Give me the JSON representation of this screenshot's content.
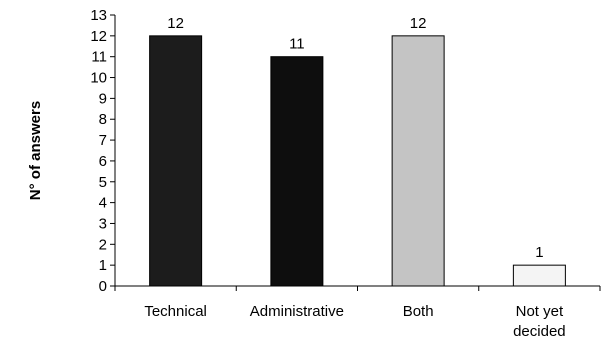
{
  "chart_data": {
    "type": "bar",
    "ylabel": "N° of answers",
    "ylim": [
      0,
      13
    ],
    "yticks": [
      0,
      1,
      2,
      3,
      4,
      5,
      6,
      7,
      8,
      9,
      10,
      11,
      12,
      13
    ],
    "grid": false,
    "categories": [
      [
        "Technical"
      ],
      [
        "Administrative"
      ],
      [
        "Both"
      ],
      [
        "Not yet",
        "decided"
      ]
    ],
    "values": [
      12,
      11,
      12,
      1
    ],
    "data_labels": [
      "12",
      "11",
      "12",
      "1"
    ],
    "colors": [
      "#1c1c1c",
      "#0e0e0e",
      "#c4c4c4",
      "#f4f4f4"
    ]
  }
}
